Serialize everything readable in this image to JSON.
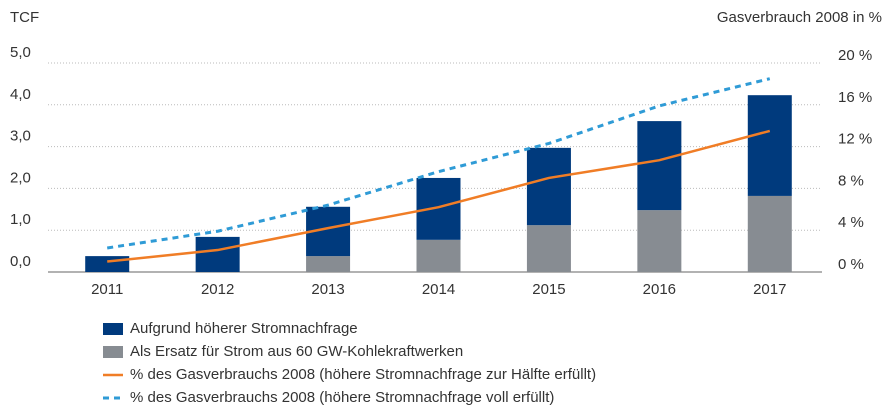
{
  "chart_data": {
    "type": "bar",
    "y_label": "TCF",
    "y2_label": "Gasverbrauch 2008 in %",
    "categories": [
      "2011",
      "2012",
      "2013",
      "2014",
      "2015",
      "2016",
      "2017"
    ],
    "series": [
      {
        "name": "Aufgrund höherer Stromnachfrage",
        "type": "bar",
        "color": "#003a7d",
        "values": [
          0.38,
          0.84,
          1.18,
          1.48,
          1.85,
          2.13,
          2.41
        ]
      },
      {
        "name": "Als Ersatz für Strom aus 60 GW-Kohlekraftwerken",
        "type": "bar",
        "color": "#878c92",
        "values": [
          0,
          0,
          0.38,
          0.77,
          1.12,
          1.48,
          1.82
        ]
      },
      {
        "name": "% des Gasverbrauchs 2008 (höhere Stromnachfrage zur Hälfte erfüllt)",
        "type": "line",
        "axis": "y2",
        "color": "#f07d26",
        "style": "solid",
        "values": [
          1.0,
          2.1,
          4.2,
          6.2,
          9.0,
          10.7,
          13.5
        ]
      },
      {
        "name": "% des Gasverbrauchs 2008 (höhere Stromnachfrage voll erfüllt)",
        "type": "line",
        "axis": "y2",
        "color": "#2f9bd6",
        "style": "dashed",
        "values": [
          2.3,
          3.9,
          6.4,
          9.6,
          12.3,
          15.9,
          18.5
        ]
      }
    ],
    "stacked": true,
    "ylim": [
      0,
      5
    ],
    "yticks": [
      {
        "value": 0,
        "label": "0,0"
      },
      {
        "value": 1,
        "label": "1,0"
      },
      {
        "value": 2,
        "label": "2,0"
      },
      {
        "value": 3,
        "label": "3,0"
      },
      {
        "value": 4,
        "label": "4,0"
      },
      {
        "value": 5,
        "label": "5,0"
      }
    ],
    "y2lim": [
      0,
      20
    ],
    "y2ticks": [
      {
        "value": 0,
        "label": "0 %"
      },
      {
        "value": 4,
        "label": "4 %"
      },
      {
        "value": 8,
        "label": "8 %"
      },
      {
        "value": 12,
        "label": "12 %"
      },
      {
        "value": 16,
        "label": "16 %"
      },
      {
        "value": 20,
        "label": "20 %"
      }
    ],
    "grid": true
  }
}
